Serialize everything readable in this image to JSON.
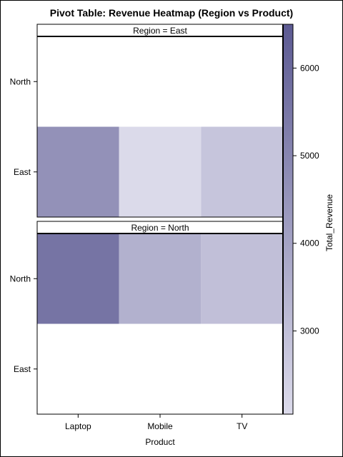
{
  "chart_data": {
    "type": "heatmap",
    "title": "Pivot Table: Revenue Heatmap (Region vs Product)",
    "xlabel": "Product",
    "ylabel": "",
    "colorbar_label": "Total_Revenue",
    "colorbar_ticks": [
      3000,
      4000,
      5000,
      6000
    ],
    "color_range": [
      2050,
      6500
    ],
    "color_low": "#dcdbeb",
    "color_high": "#5c5a92",
    "x_categories": [
      "Laptop",
      "Mobile",
      "TV"
    ],
    "y_categories": [
      "North",
      "East"
    ],
    "panels": [
      {
        "label": "Region = East",
        "cells": [
          {
            "x": "Laptop",
            "y": "East",
            "value": 4600
          },
          {
            "x": "Mobile",
            "y": "East",
            "value": 2100
          },
          {
            "x": "TV",
            "y": "East",
            "value": 2800
          }
        ]
      },
      {
        "label": "Region = North",
        "cells": [
          {
            "x": "Laptop",
            "y": "North",
            "value": 5600
          },
          {
            "x": "Mobile",
            "y": "North",
            "value": 3500
          },
          {
            "x": "TV",
            "y": "North",
            "value": 3000
          }
        ]
      }
    ]
  }
}
